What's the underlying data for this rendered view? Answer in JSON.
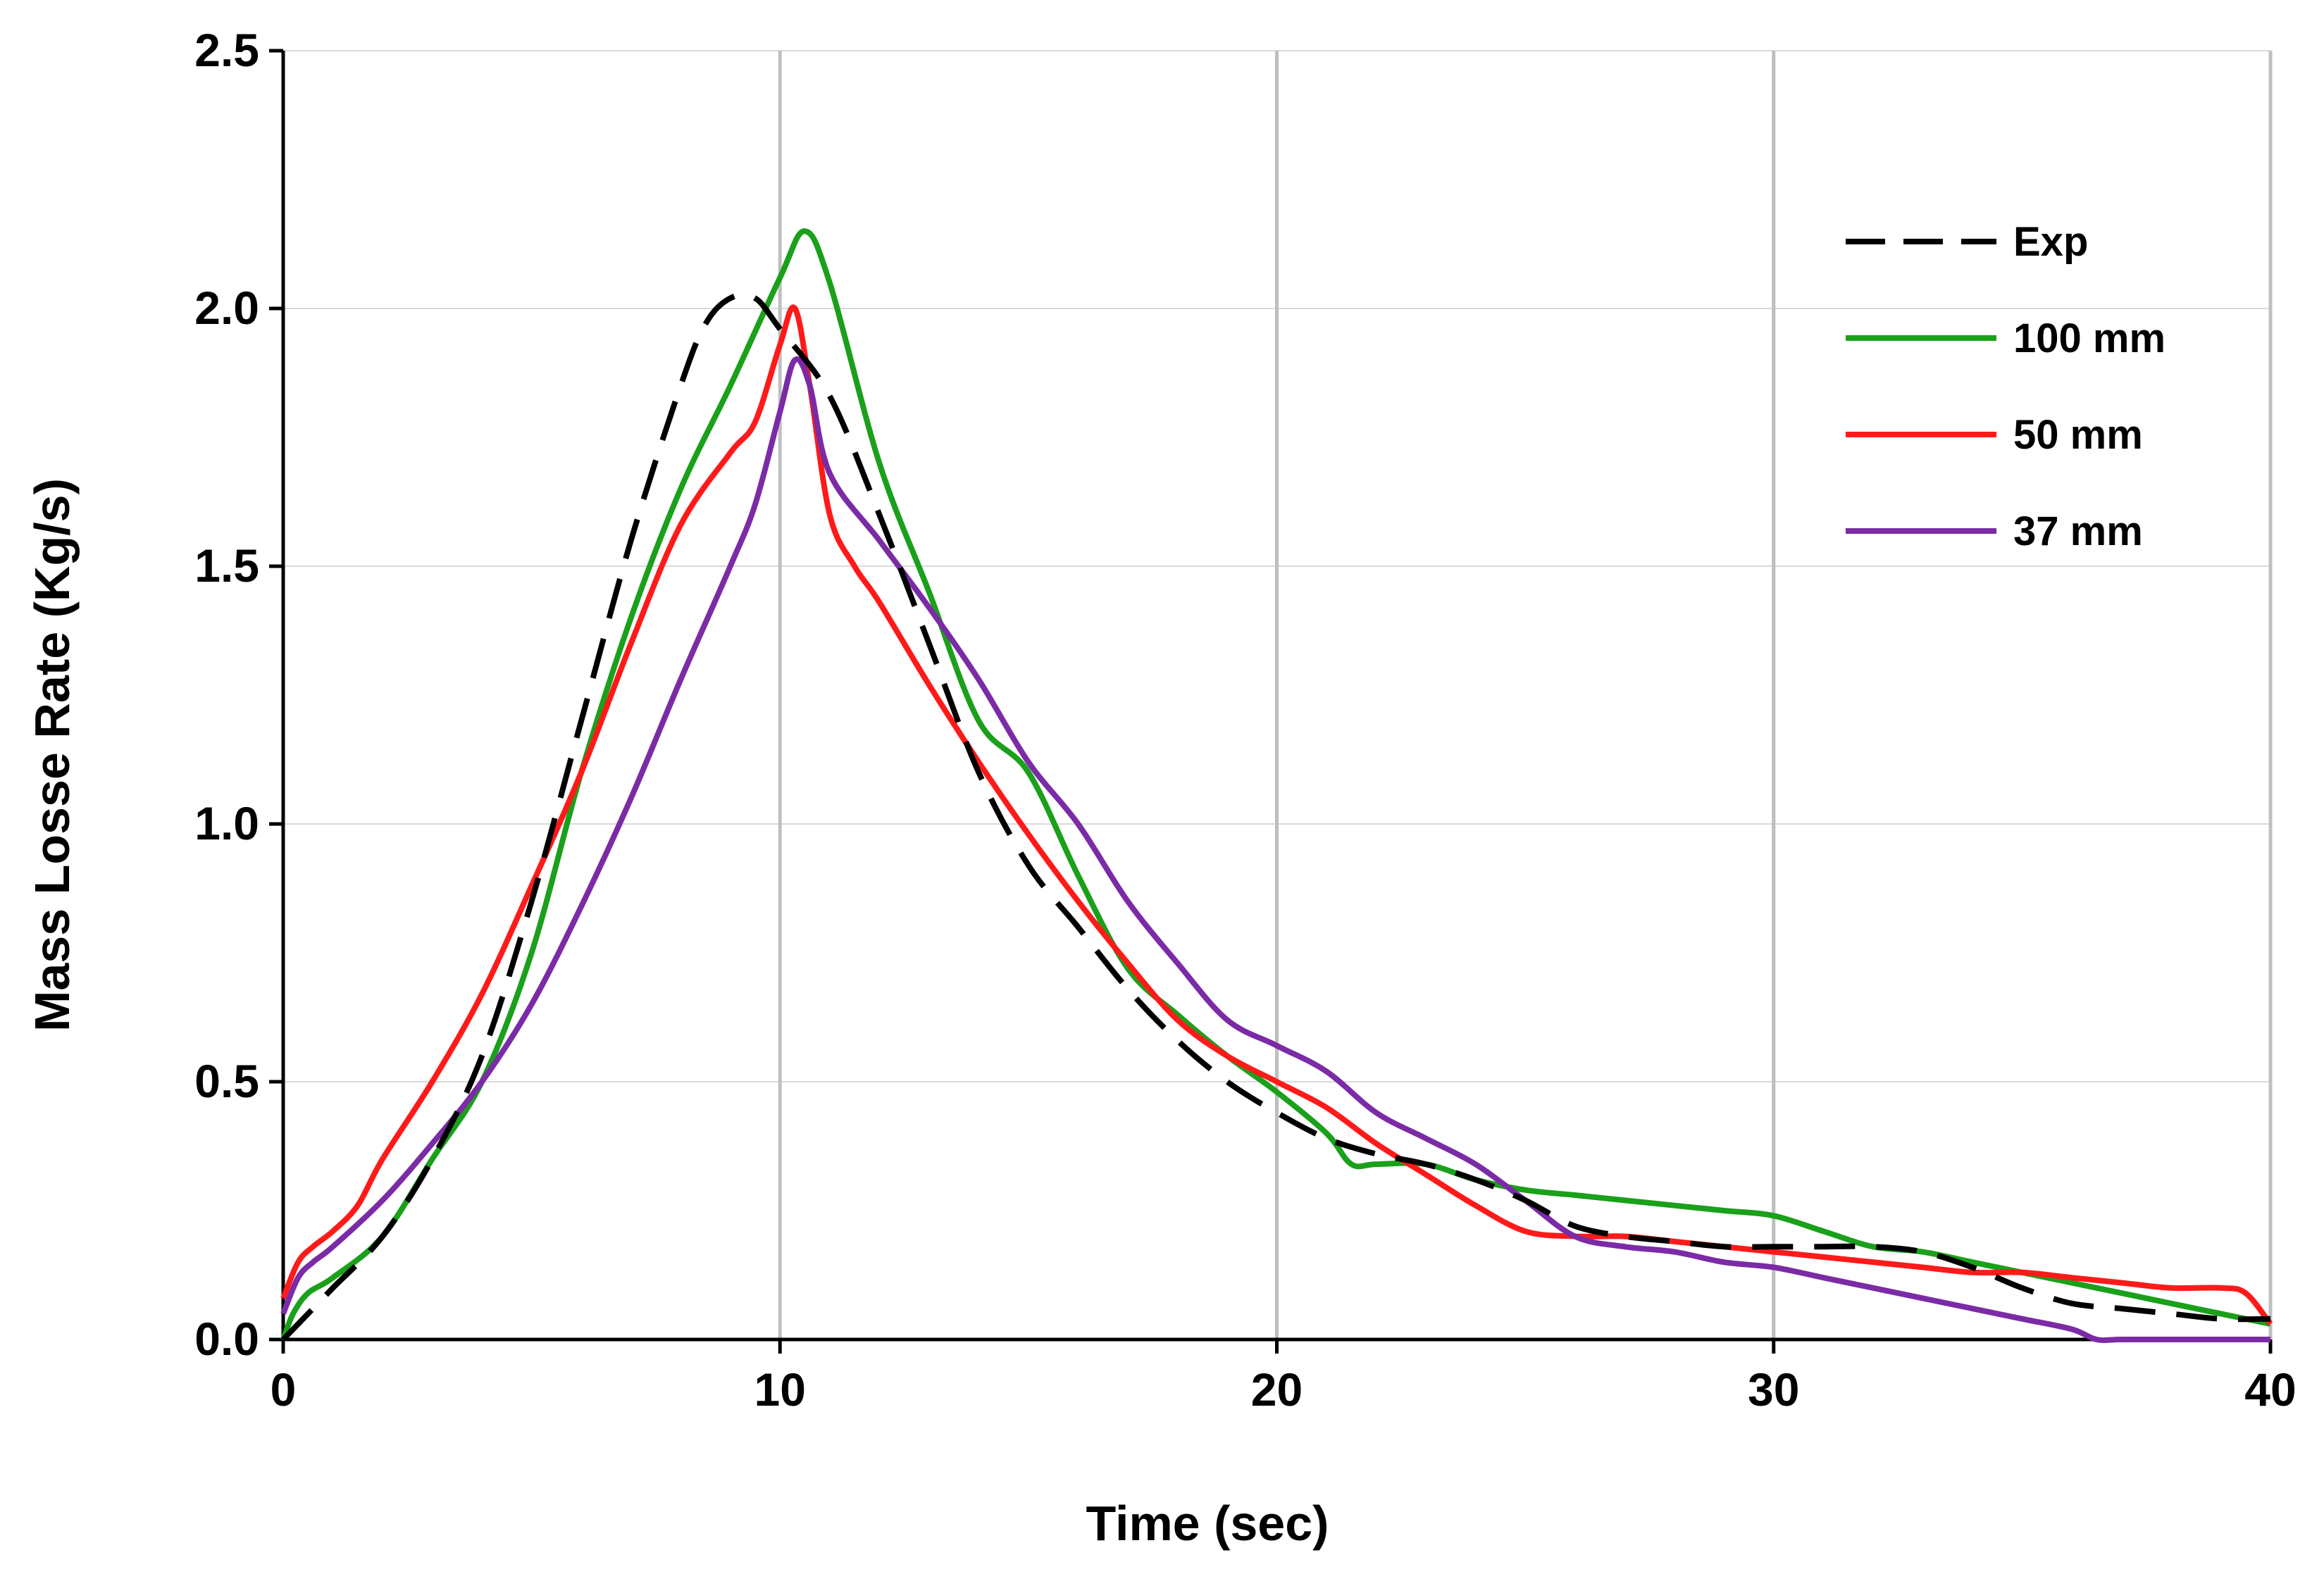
{
  "chart_data": {
    "type": "line",
    "title": "",
    "xlabel": "Time (sec)",
    "ylabel": "Mass Losse Rate (Kg/s)",
    "xlim": [
      0,
      40
    ],
    "ylim": [
      0,
      2.5
    ],
    "x_ticks": [
      0,
      10,
      20,
      30,
      40
    ],
    "y_ticks": [
      0.0,
      0.5,
      1.0,
      1.5,
      2.0,
      2.5
    ],
    "x_tick_labels": [
      "0",
      "10",
      "20",
      "30",
      "40"
    ],
    "y_tick_labels": [
      "0.0",
      "0.5",
      "1.0",
      "1.5",
      "2.0",
      "2.5"
    ],
    "grid": {
      "vertical": true,
      "horizontal": true
    },
    "legend_position": "top-right",
    "series": [
      {
        "name": "Exp",
        "color": "#000000",
        "dash": "dashed",
        "x": [
          0,
          0.5,
          1,
          2,
          3,
          4,
          5,
          6,
          7,
          8,
          8.5,
          9,
          9.5,
          10,
          11,
          12,
          13,
          14,
          15,
          16,
          17,
          18,
          19,
          20,
          21,
          22,
          23,
          24,
          25,
          26,
          27,
          28,
          29,
          30,
          31,
          32,
          33,
          34,
          35,
          36,
          37,
          38,
          39,
          40
        ],
        "y": [
          0.0,
          0.05,
          0.1,
          0.2,
          0.35,
          0.55,
          0.85,
          1.2,
          1.55,
          1.85,
          1.97,
          2.02,
          2.02,
          1.96,
          1.83,
          1.6,
          1.35,
          1.1,
          0.92,
          0.8,
          0.68,
          0.58,
          0.5,
          0.44,
          0.39,
          0.36,
          0.34,
          0.31,
          0.27,
          0.22,
          0.2,
          0.19,
          0.18,
          0.18,
          0.18,
          0.18,
          0.17,
          0.14,
          0.1,
          0.07,
          0.06,
          0.05,
          0.04,
          0.04
        ]
      },
      {
        "name": "100 mm",
        "color": "#1aa01a",
        "dash": "solid",
        "x": [
          0,
          0.2,
          0.5,
          1,
          2,
          3,
          4,
          5,
          6,
          7,
          8,
          9,
          10,
          10.5,
          11,
          12,
          13,
          14,
          15,
          16,
          17,
          18,
          19,
          20,
          21,
          21.5,
          22,
          23,
          24,
          25,
          26,
          27,
          28,
          29,
          30,
          31,
          32,
          33,
          34,
          35,
          36,
          37,
          38,
          39,
          40
        ],
        "y": [
          0.0,
          0.05,
          0.09,
          0.12,
          0.2,
          0.35,
          0.5,
          0.75,
          1.1,
          1.4,
          1.65,
          1.85,
          2.06,
          2.15,
          2.05,
          1.7,
          1.45,
          1.2,
          1.1,
          0.9,
          0.72,
          0.63,
          0.55,
          0.48,
          0.4,
          0.34,
          0.34,
          0.34,
          0.31,
          0.29,
          0.28,
          0.27,
          0.26,
          0.25,
          0.24,
          0.21,
          0.18,
          0.17,
          0.15,
          0.13,
          0.11,
          0.09,
          0.07,
          0.05,
          0.03
        ]
      },
      {
        "name": "50 mm",
        "color": "#ff1a1a",
        "dash": "solid",
        "x": [
          0,
          0.3,
          0.6,
          1,
          1.5,
          2,
          3,
          4,
          5,
          6,
          7,
          8,
          9,
          9.5,
          10,
          10.3,
          10.6,
          11,
          11.5,
          12,
          13,
          14,
          15,
          16,
          17,
          18,
          19,
          20,
          21,
          22,
          23,
          24,
          25,
          26,
          27,
          28,
          29,
          30,
          31,
          32,
          33,
          34,
          35,
          36,
          37,
          38,
          39,
          39.5,
          40
        ],
        "y": [
          0.08,
          0.15,
          0.18,
          0.21,
          0.26,
          0.35,
          0.5,
          0.67,
          0.88,
          1.1,
          1.35,
          1.58,
          1.72,
          1.78,
          1.93,
          2.0,
          1.85,
          1.6,
          1.5,
          1.43,
          1.27,
          1.12,
          0.98,
          0.85,
          0.73,
          0.62,
          0.55,
          0.5,
          0.45,
          0.38,
          0.32,
          0.26,
          0.21,
          0.2,
          0.2,
          0.19,
          0.18,
          0.17,
          0.16,
          0.15,
          0.14,
          0.13,
          0.13,
          0.12,
          0.11,
          0.1,
          0.1,
          0.09,
          0.03
        ]
      },
      {
        "name": "37 mm",
        "color": "#7b2ba6",
        "dash": "solid",
        "x": [
          0,
          0.3,
          0.6,
          1,
          2,
          3,
          4,
          5,
          6,
          7,
          8,
          9,
          9.5,
          10,
          10.3,
          10.6,
          11,
          12,
          13,
          14,
          15,
          16,
          17,
          18,
          19,
          20,
          21,
          22,
          23,
          24,
          25,
          26,
          27,
          28,
          29,
          30,
          31,
          32,
          33,
          34,
          35,
          36,
          36.5,
          37,
          38,
          39,
          40
        ],
        "y": [
          0.05,
          0.12,
          0.15,
          0.18,
          0.27,
          0.38,
          0.5,
          0.65,
          0.84,
          1.05,
          1.28,
          1.5,
          1.62,
          1.8,
          1.9,
          1.85,
          1.68,
          1.55,
          1.42,
          1.28,
          1.12,
          1.0,
          0.85,
          0.73,
          0.62,
          0.57,
          0.52,
          0.44,
          0.39,
          0.34,
          0.27,
          0.2,
          0.18,
          0.17,
          0.15,
          0.14,
          0.12,
          0.1,
          0.08,
          0.06,
          0.04,
          0.02,
          0.0,
          0.0,
          0.0,
          0.0,
          0.0
        ]
      }
    ]
  }
}
